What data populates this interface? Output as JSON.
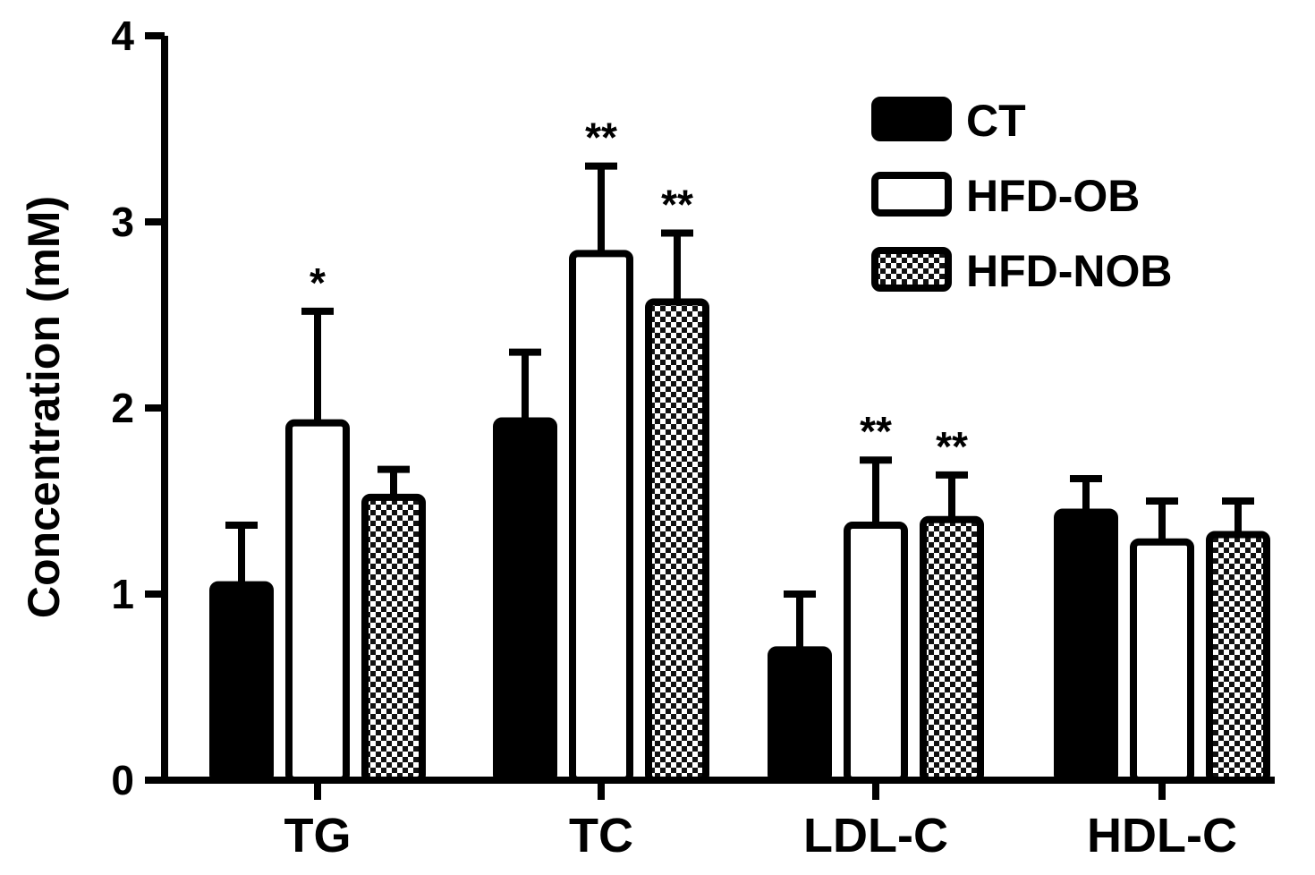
{
  "chart_data": {
    "type": "bar",
    "ylabel": "Concentration (mM)",
    "ylim": [
      0,
      4
    ],
    "yticks": [
      "0",
      "1",
      "2",
      "3",
      "4"
    ],
    "categories": [
      "TG",
      "TC",
      "LDL-C",
      "HDL-C"
    ],
    "legend_position": "top-right",
    "series": [
      {
        "name": "CT",
        "fill": "solid",
        "values": [
          1.05,
          1.93,
          0.7,
          1.44
        ],
        "errors": [
          0.32,
          0.37,
          0.3,
          0.18
        ],
        "significance": [
          "",
          "",
          "",
          ""
        ]
      },
      {
        "name": "HFD-OB",
        "fill": "open",
        "values": [
          1.92,
          2.83,
          1.37,
          1.28
        ],
        "errors": [
          0.6,
          0.47,
          0.35,
          0.22
        ],
        "significance": [
          "*",
          "**",
          "**",
          ""
        ]
      },
      {
        "name": "HFD-NOB",
        "fill": "checkered",
        "values": [
          1.52,
          2.57,
          1.4,
          1.32
        ],
        "errors": [
          0.15,
          0.37,
          0.24,
          0.18
        ],
        "significance": [
          "",
          "**",
          "**",
          ""
        ]
      }
    ]
  }
}
